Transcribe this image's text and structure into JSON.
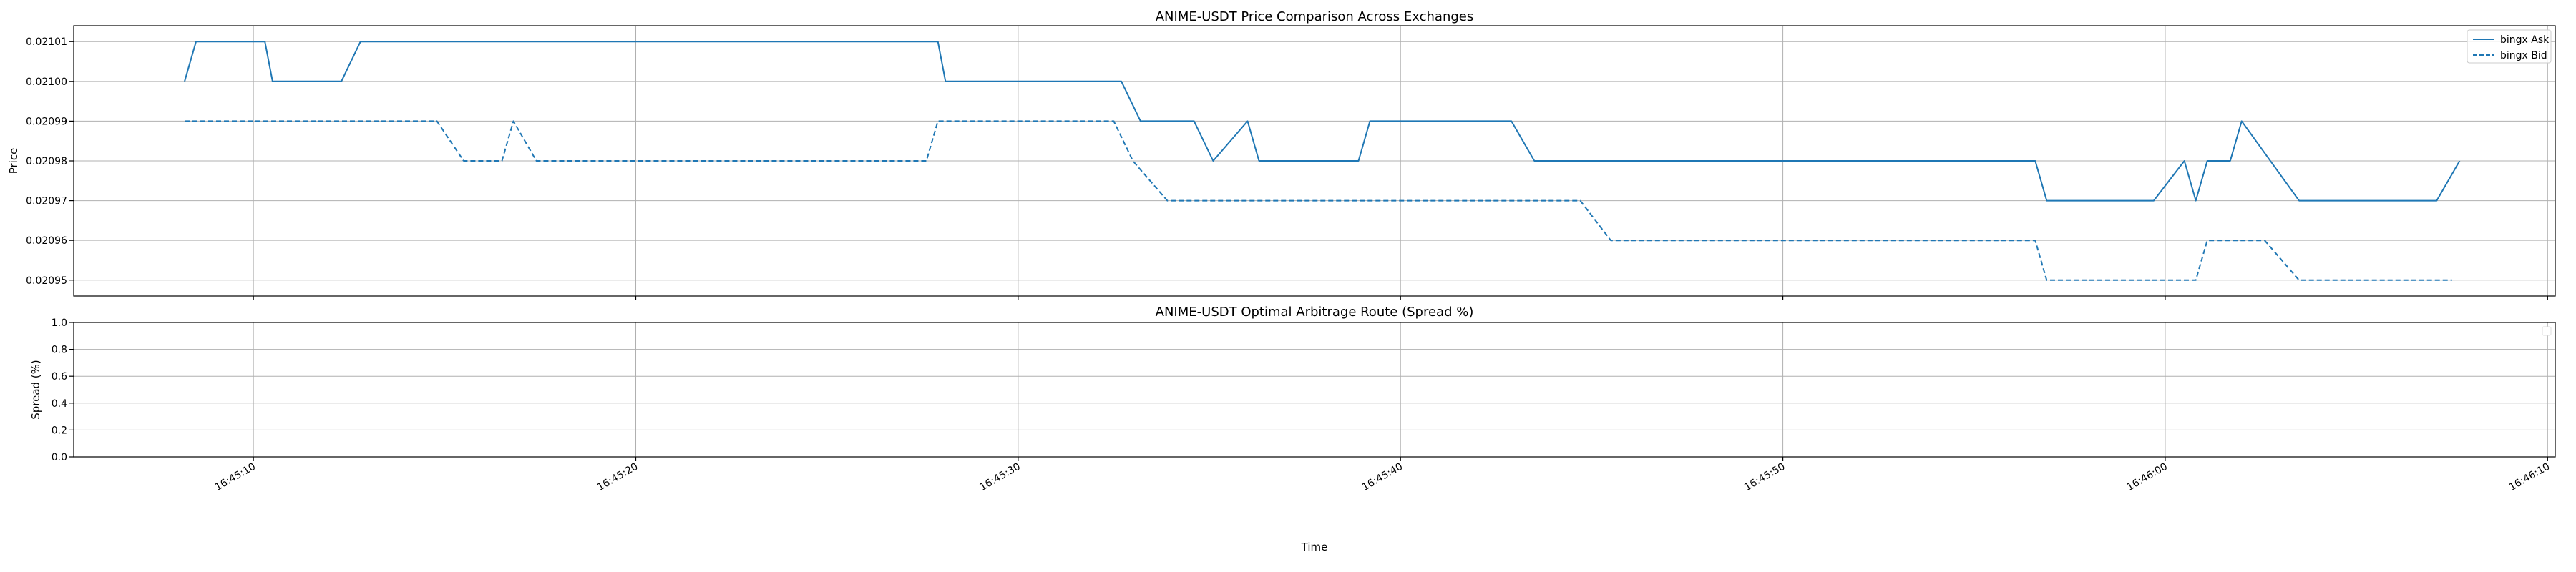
{
  "chart_data": [
    {
      "type": "line",
      "title": "ANIME-USDT Price Comparison Across Exchanges",
      "xlabel": "",
      "ylabel": "Price",
      "ylim": [
        0.020946,
        0.021014
      ],
      "yticks": [
        0.02095,
        0.02096,
        0.02097,
        0.02098,
        0.02099,
        0.021,
        0.02101
      ],
      "ytick_labels": [
        "0.02095",
        "0.02096",
        "0.02097",
        "0.02098",
        "0.02099",
        "0.02100",
        "0.02101"
      ],
      "grid": true,
      "legend_position": "top-right",
      "series": [
        {
          "name": "bingx Ask",
          "style": "solid",
          "color": "#1f77b4",
          "points": [
            [
              "16:45:08.2",
              0.021
            ],
            [
              "16:45:08.5",
              0.02101
            ],
            [
              "16:45:10.3",
              0.02101
            ],
            [
              "16:45:10.5",
              0.021
            ],
            [
              "16:45:12.3",
              0.021
            ],
            [
              "16:45:12.8",
              0.02101
            ],
            [
              "16:45:27.9",
              0.02101
            ],
            [
              "16:45:28.1",
              0.021
            ],
            [
              "16:45:32.7",
              0.021
            ],
            [
              "16:45:33.2",
              0.02099
            ],
            [
              "16:45:34.6",
              0.02099
            ],
            [
              "16:45:35.1",
              0.02098
            ],
            [
              "16:45:36.0",
              0.02099
            ],
            [
              "16:45:36.3",
              0.02098
            ],
            [
              "16:45:38.9",
              0.02098
            ],
            [
              "16:45:39.2",
              0.02099
            ],
            [
              "16:45:42.9",
              0.02099
            ],
            [
              "16:45:43.5",
              0.02098
            ],
            [
              "16:45:56.6",
              0.02098
            ],
            [
              "16:45:56.9",
              0.02097
            ],
            [
              "16:45:59.7",
              0.02097
            ],
            [
              "16:46:00.5",
              0.02098
            ],
            [
              "16:46:00.8",
              0.02097
            ],
            [
              "16:46:01.1",
              0.02098
            ],
            [
              "16:46:01.7",
              0.02098
            ],
            [
              "16:46:02.0",
              0.02099
            ],
            [
              "16:46:03.5",
              0.02097
            ],
            [
              "16:46:07.1",
              0.02097
            ],
            [
              "16:46:07.7",
              0.02098
            ]
          ]
        },
        {
          "name": "bingx Bid",
          "style": "dashed",
          "color": "#1f77b4",
          "points": [
            [
              "16:45:08.2",
              0.02099
            ],
            [
              "16:45:14.8",
              0.02099
            ],
            [
              "16:45:15.5",
              0.02098
            ],
            [
              "16:45:16.5",
              0.02098
            ],
            [
              "16:45:16.8",
              0.02099
            ],
            [
              "16:45:17.4",
              0.02098
            ],
            [
              "16:45:27.6",
              0.02098
            ],
            [
              "16:45:27.9",
              0.02099
            ],
            [
              "16:45:32.5",
              0.02099
            ],
            [
              "16:45:33.0",
              0.02098
            ],
            [
              "16:45:33.9",
              0.02097
            ],
            [
              "16:45:44.7",
              0.02097
            ],
            [
              "16:45:45.5",
              0.02096
            ],
            [
              "16:45:56.6",
              0.02096
            ],
            [
              "16:45:56.9",
              0.02095
            ],
            [
              "16:46:00.8",
              0.02095
            ],
            [
              "16:46:01.1",
              0.02096
            ],
            [
              "16:46:02.6",
              0.02096
            ],
            [
              "16:46:03.5",
              0.02095
            ],
            [
              "16:46:07.5",
              0.02095
            ]
          ]
        }
      ]
    },
    {
      "type": "line",
      "title": "ANIME-USDT Optimal Arbitrage Route (Spread %)",
      "xlabel": "Time",
      "ylabel": "Spread (%)",
      "ylim": [
        0.0,
        1.0
      ],
      "yticks": [
        0.0,
        0.2,
        0.4,
        0.6,
        0.8,
        1.0
      ],
      "ytick_labels": [
        "0.0",
        "0.2",
        "0.4",
        "0.6",
        "0.8",
        "1.0"
      ],
      "grid": true,
      "legend_position": "top-right",
      "series": []
    }
  ],
  "xaxis": {
    "range": [
      "16:45:05.3",
      "16:46:10.2"
    ],
    "ticks": [
      "16:45:10",
      "16:45:20",
      "16:45:30",
      "16:45:40",
      "16:45:50",
      "16:46:00",
      "16:46:10"
    ],
    "tick_labels": [
      "16:45:10",
      "16:45:20",
      "16:45:30",
      "16:45:40",
      "16:45:50",
      "16:46:00",
      "16:46:10"
    ]
  }
}
